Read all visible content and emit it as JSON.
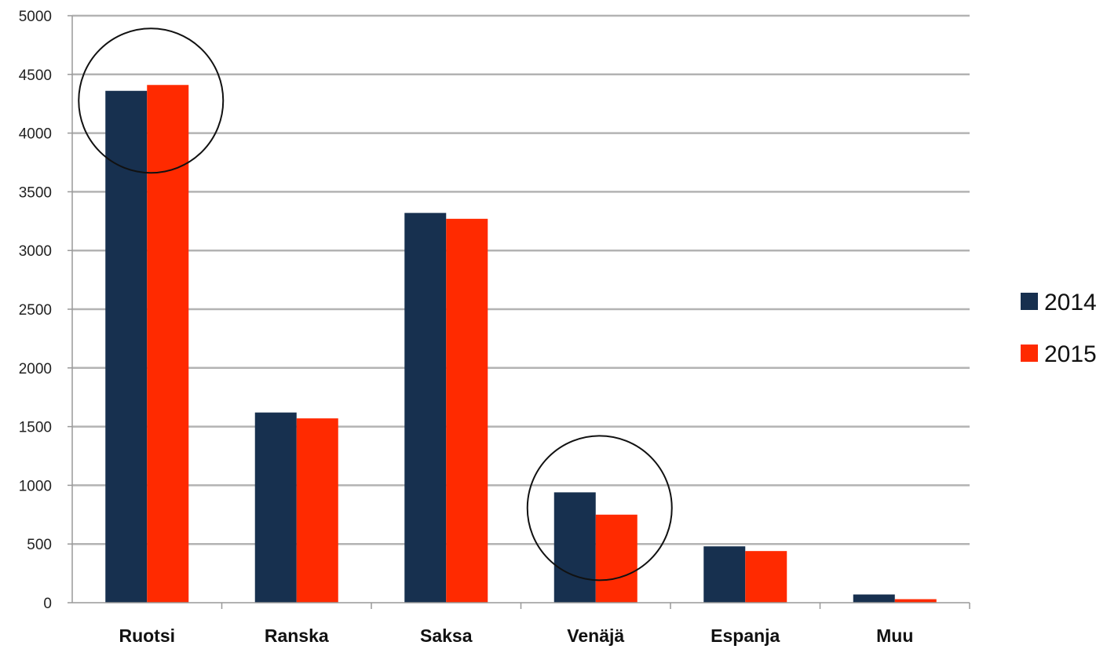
{
  "chart_data": {
    "type": "bar",
    "title": "",
    "xlabel": "",
    "ylabel": "",
    "categories": [
      "Ruotsi",
      "Ranska",
      "Saksa",
      "Venäjä",
      "Espanja",
      "Muu"
    ],
    "series": [
      {
        "name": "2014",
        "color": "#17304f",
        "values": [
          4360,
          1620,
          3320,
          940,
          480,
          70
        ]
      },
      {
        "name": "2015",
        "color": "#ff2a00",
        "values": [
          4410,
          1570,
          3270,
          750,
          440,
          30
        ]
      }
    ],
    "ylim": [
      0,
      5000
    ],
    "yticks": [
      "0",
      "500",
      "1000",
      "1500",
      "2000",
      "2500",
      "3000",
      "3500",
      "4000",
      "4500",
      "5000"
    ],
    "grid": true,
    "legend": "right",
    "annotations": [
      {
        "type": "circle",
        "category": "Ruotsi"
      },
      {
        "type": "circle",
        "category": "Venäjä"
      }
    ]
  }
}
